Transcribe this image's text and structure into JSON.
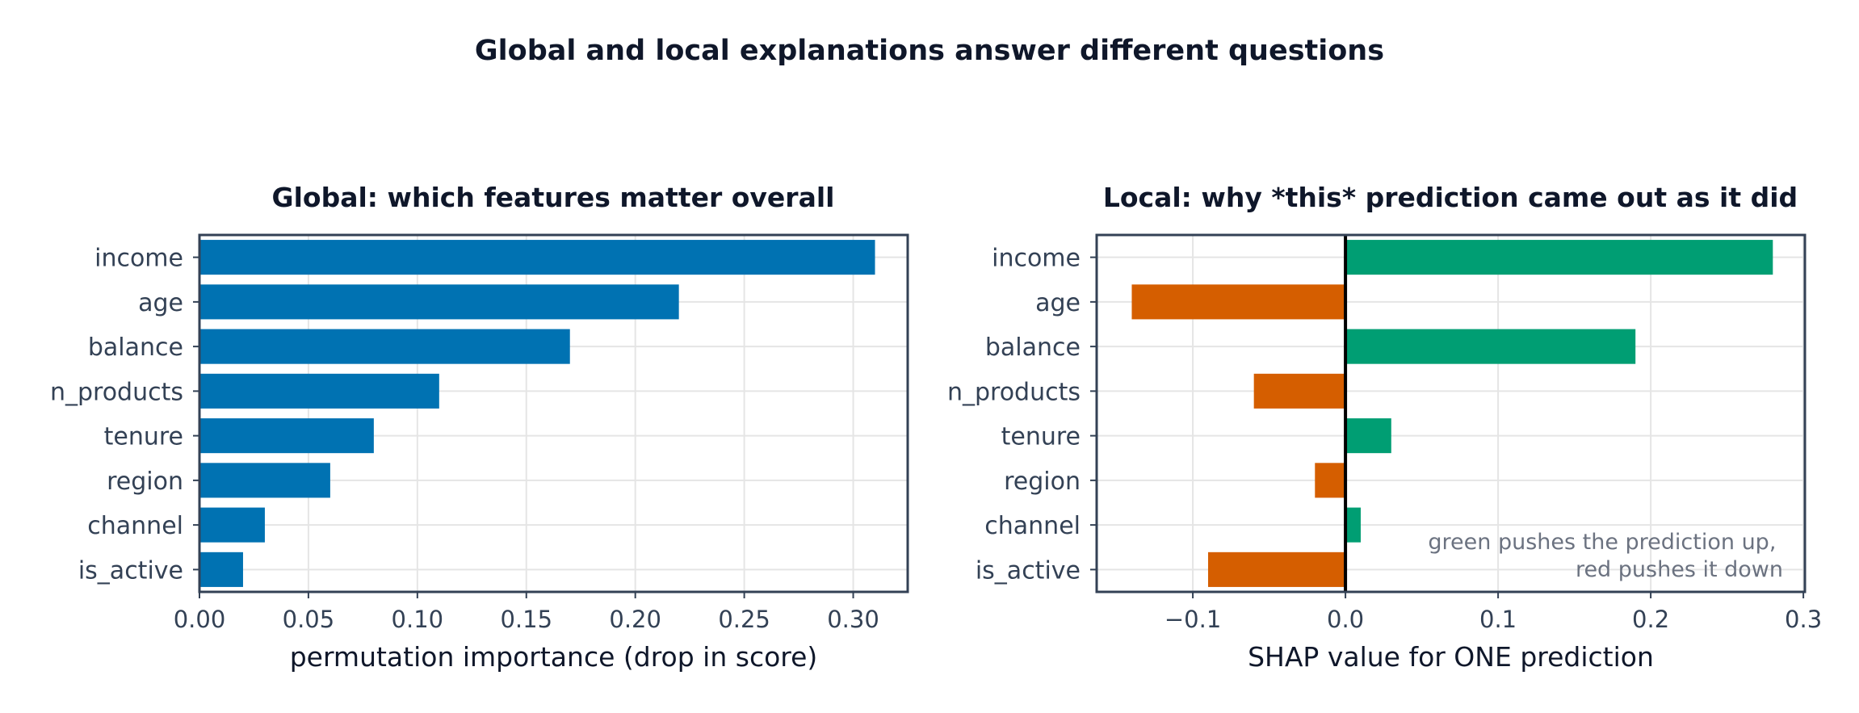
{
  "figure": {
    "suptitle": "Global and local explanations answer different questions",
    "colors": {
      "text": "#0f172a",
      "axis": "#334155",
      "grid": "#e5e5e5",
      "note": "#6b7280",
      "bar_blue": "#0072b2",
      "bar_green": "#009e73",
      "bar_red": "#d55e00"
    }
  },
  "chart_data": [
    {
      "type": "bar",
      "orientation": "horizontal",
      "title": "Global: which features matter overall",
      "xlabel": "permutation importance (drop in score)",
      "ylabel": "",
      "categories": [
        "income",
        "age",
        "balance",
        "n_products",
        "tenure",
        "region",
        "channel",
        "is_active"
      ],
      "values": [
        0.31,
        0.22,
        0.17,
        0.11,
        0.08,
        0.06,
        0.03,
        0.02
      ],
      "xlim": [
        0,
        0.325
      ],
      "xticks": [
        0.0,
        0.05,
        0.1,
        0.15,
        0.2,
        0.25,
        0.3
      ],
      "xtick_labels": [
        "0.00",
        "0.05",
        "0.10",
        "0.15",
        "0.20",
        "0.25",
        "0.30"
      ],
      "grid": true,
      "bar_color": "#0072b2"
    },
    {
      "type": "bar",
      "orientation": "horizontal",
      "title": "Local: why *this* prediction came out as it did",
      "xlabel": "SHAP value for ONE prediction",
      "ylabel": "",
      "categories": [
        "income",
        "age",
        "balance",
        "n_products",
        "tenure",
        "region",
        "channel",
        "is_active"
      ],
      "values": [
        0.28,
        -0.14,
        0.19,
        -0.06,
        0.03,
        -0.02,
        0.01,
        -0.09
      ],
      "xlim": [
        -0.163,
        0.301
      ],
      "xticks": [
        -0.1,
        0.0,
        0.1,
        0.2,
        0.3
      ],
      "xtick_labels": [
        "−0.1",
        "0.0",
        "0.1",
        "0.2",
        "0.3"
      ],
      "grid": true,
      "zero_line": true,
      "positive_color": "#009e73",
      "negative_color": "#d55e00",
      "annotation": [
        "green pushes the prediction up,",
        "red pushes it down"
      ]
    }
  ]
}
